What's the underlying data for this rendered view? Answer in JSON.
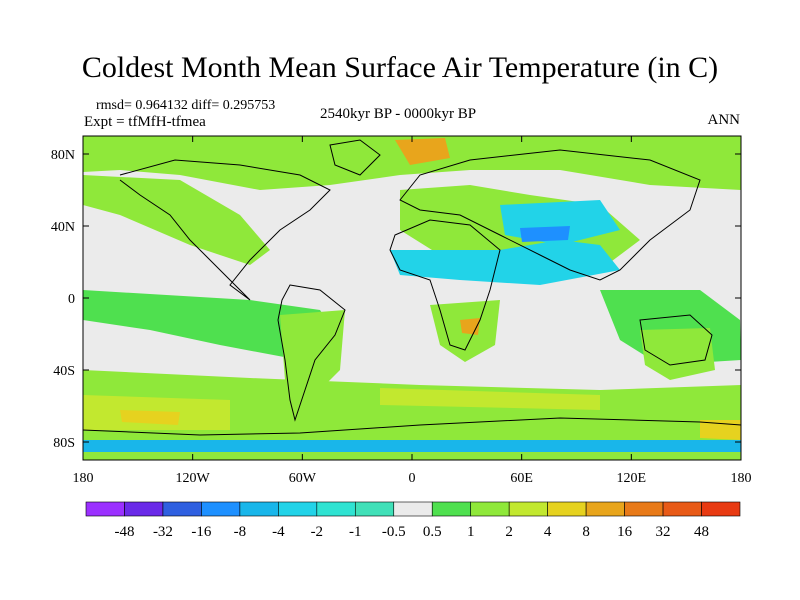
{
  "title": "Coldest Month Mean Surface Air Temperature (in C)",
  "stats": "rmsd= 0.964132 diff= 0.295753",
  "experiment": "Expt = tfMfH-tfmea",
  "period": "2540kyr BP - 0000kyr BP",
  "season": "ANN",
  "axes": {
    "x_ticks": [
      {
        "value": -180,
        "label": "180"
      },
      {
        "value": -120,
        "label": "120W"
      },
      {
        "value": -60,
        "label": "60W"
      },
      {
        "value": 0,
        "label": "0"
      },
      {
        "value": 60,
        "label": "60E"
      },
      {
        "value": 120,
        "label": "120E"
      },
      {
        "value": 180,
        "label": "180"
      }
    ],
    "y_ticks": [
      {
        "value": 80,
        "label": "80N"
      },
      {
        "value": 40,
        "label": "40N"
      },
      {
        "value": 0,
        "label": "0"
      },
      {
        "value": -40,
        "label": "40S"
      },
      {
        "value": -80,
        "label": "80S"
      }
    ],
    "lon_range": [
      -180,
      180
    ],
    "lat_range": [
      -90,
      90
    ]
  },
  "colorbar": {
    "colors": [
      "#9b30ff",
      "#6a2ae8",
      "#2f5fe0",
      "#1e90ff",
      "#19b6ea",
      "#22d3e8",
      "#2fe3d2",
      "#40e0b8",
      "#ebebeb",
      "#4fe04f",
      "#8fe83a",
      "#c2e82f",
      "#e6d21f",
      "#e8a51c",
      "#e87a19",
      "#e85a17",
      "#e83a12"
    ],
    "labels": [
      "-48",
      "-32",
      "-16",
      "-8",
      "-4",
      "-2",
      "-1",
      "-0.5",
      "0.5",
      "1",
      "2",
      "4",
      "8",
      "16",
      "32",
      "48"
    ]
  }
}
